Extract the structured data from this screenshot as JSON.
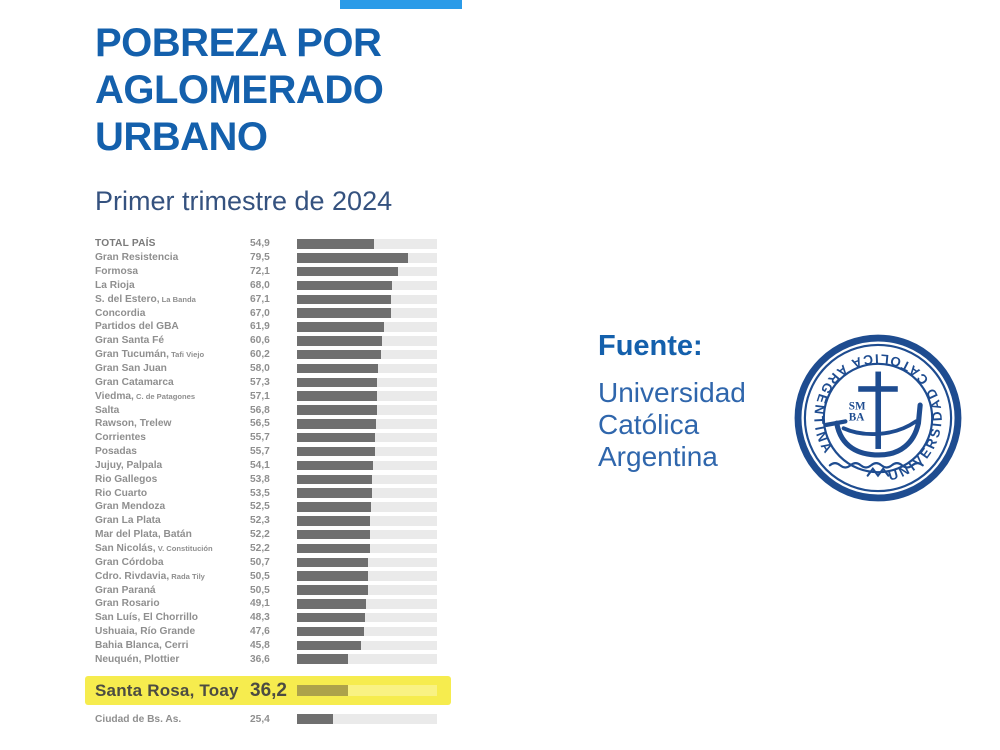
{
  "decor": {
    "top_accent_visible": true
  },
  "header": {
    "title": "POBREZA POR\nAGLOMERADO\nURBANO",
    "subtitle": "Primer trimestre de 2024"
  },
  "source": {
    "label": "Fuente:",
    "organization": "Universidad\nCatólica\nArgentina"
  },
  "logo": {
    "ring_text": "UNIVERSIDAD CATOLICA ARGENTINA",
    "monogram_line1": "SM",
    "monogram_line2": "BA"
  },
  "colors": {
    "blue-title": "#1460AC",
    "blue-subtitle": "#35527F",
    "blue-fuente": "#1460AC",
    "blue-org": "#2F66AC",
    "navy-logo": "#1E4C90",
    "gray-label": "#8F8F8F",
    "bar-fill": "#6F6F6F",
    "bar-track": "#EAEAEA",
    "hl-bg": "#F6EC4E",
    "hl-text": "#4C4C42",
    "hl-bar": "#ADA24A",
    "top-accent": "#2B9BE8"
  },
  "chart_data": {
    "type": "bar",
    "orientation": "horizontal",
    "title": "POBREZA POR AGLOMERADO URBANO",
    "subtitle": "Primer trimestre de 2024",
    "xlim": [
      0,
      100
    ],
    "value_format": "percent with decimal comma",
    "highlighted_category": "Santa Rosa, Toay",
    "rows": [
      {
        "label": "TOTAL PAÍS",
        "sublabel": "",
        "value": 54.9,
        "display": "54,9",
        "bold": true
      },
      {
        "label": "Gran Resistencia",
        "sublabel": "",
        "value": 79.5,
        "display": "79,5"
      },
      {
        "label": "Formosa",
        "sublabel": "",
        "value": 72.1,
        "display": "72,1"
      },
      {
        "label": "La Rioja",
        "sublabel": "",
        "value": 68.0,
        "display": "68,0"
      },
      {
        "label": "S. del Estero,",
        "sublabel": "La Banda",
        "value": 67.1,
        "display": "67,1"
      },
      {
        "label": "Concordia",
        "sublabel": "",
        "value": 67.0,
        "display": "67,0"
      },
      {
        "label": "Partidos del GBA",
        "sublabel": "",
        "value": 61.9,
        "display": "61,9"
      },
      {
        "label": "Gran Santa Fé",
        "sublabel": "",
        "value": 60.6,
        "display": "60,6"
      },
      {
        "label": "Gran Tucumán,",
        "sublabel": "Tafi Viejo",
        "value": 60.2,
        "display": "60,2"
      },
      {
        "label": "Gran San Juan",
        "sublabel": "",
        "value": 58.0,
        "display": "58,0"
      },
      {
        "label": "Gran Catamarca",
        "sublabel": "",
        "value": 57.3,
        "display": "57,3"
      },
      {
        "label": "Viedma,",
        "sublabel": "C. de Patagones",
        "value": 57.1,
        "display": "57,1"
      },
      {
        "label": "Salta",
        "sublabel": "",
        "value": 56.8,
        "display": "56,8"
      },
      {
        "label": "Rawson, Trelew",
        "sublabel": "",
        "value": 56.5,
        "display": "56,5"
      },
      {
        "label": "Corrientes",
        "sublabel": "",
        "value": 55.7,
        "display": "55,7"
      },
      {
        "label": "Posadas",
        "sublabel": "",
        "value": 55.7,
        "display": "55,7"
      },
      {
        "label": "Jujuy, Palpala",
        "sublabel": "",
        "value": 54.1,
        "display": "54,1"
      },
      {
        "label": "Rio Gallegos",
        "sublabel": "",
        "value": 53.8,
        "display": "53,8"
      },
      {
        "label": "Rio Cuarto",
        "sublabel": "",
        "value": 53.5,
        "display": "53,5"
      },
      {
        "label": "Gran Mendoza",
        "sublabel": "",
        "value": 52.5,
        "display": "52,5"
      },
      {
        "label": "Gran La Plata",
        "sublabel": "",
        "value": 52.3,
        "display": "52,3"
      },
      {
        "label": "Mar del Plata, Batán",
        "sublabel": "",
        "value": 52.2,
        "display": "52,2"
      },
      {
        "label": "San Nicolás,",
        "sublabel": "V. Constitución",
        "value": 52.2,
        "display": "52,2"
      },
      {
        "label": "Gran Córdoba",
        "sublabel": "",
        "value": 50.7,
        "display": "50,7"
      },
      {
        "label": "Cdro. Rivdavia,",
        "sublabel": "Rada Tily",
        "value": 50.5,
        "display": "50,5"
      },
      {
        "label": "Gran Paraná",
        "sublabel": "",
        "value": 50.5,
        "display": "50,5"
      },
      {
        "label": "Gran Rosario",
        "sublabel": "",
        "value": 49.1,
        "display": "49,1"
      },
      {
        "label": "San Luís, El Chorrillo",
        "sublabel": "",
        "value": 48.3,
        "display": "48,3"
      },
      {
        "label": "Ushuaia, Río Grande",
        "sublabel": "",
        "value": 47.6,
        "display": "47,6"
      },
      {
        "label": "Bahia Blanca, Cerri",
        "sublabel": "",
        "value": 45.8,
        "display": "45,8"
      },
      {
        "label": "Neuquén, Plottier",
        "sublabel": "",
        "value": 36.6,
        "display": "36,6"
      },
      {
        "label": "Santa Rosa, Toay",
        "sublabel": "",
        "value": 36.2,
        "display": "36,2",
        "highlight": true
      },
      {
        "label": "Ciudad de Bs. As.",
        "sublabel": "",
        "value": 25.4,
        "display": "25,4",
        "separated": true
      }
    ]
  }
}
